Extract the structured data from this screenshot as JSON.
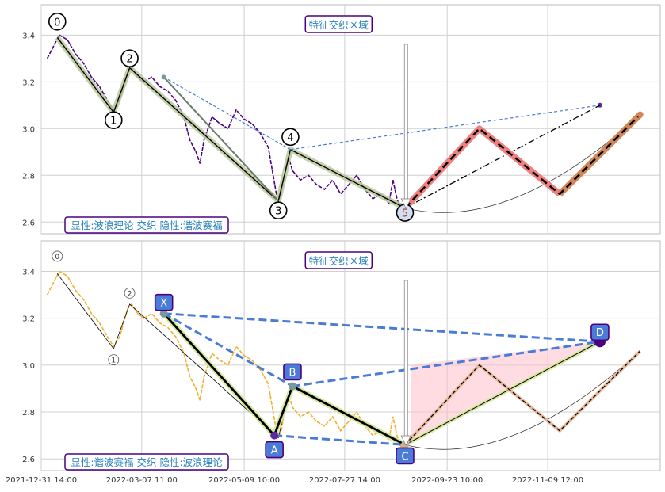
{
  "chart_data": [
    {
      "type": "line",
      "panel": "top",
      "annotation_box": "显性:波浪理论 交织 隐性:谐波赛福",
      "feature_label": "特征交织区域",
      "ylim": [
        2.55,
        3.53
      ],
      "yticks": [
        2.6,
        2.8,
        3.0,
        3.2,
        3.4
      ],
      "yticklabels": [
        "2.6",
        "2.8",
        "3.0",
        "3.2",
        "3.4"
      ],
      "grid": true,
      "price": [
        [
          0,
          3.3
        ],
        [
          3,
          3.35
        ],
        [
          6,
          3.4
        ],
        [
          10,
          3.38
        ],
        [
          14,
          3.32
        ],
        [
          18,
          3.28
        ],
        [
          22,
          3.22
        ],
        [
          26,
          3.18
        ],
        [
          30,
          3.12
        ],
        [
          33,
          3.08
        ],
        [
          36,
          3.12
        ],
        [
          38,
          3.18
        ],
        [
          40,
          3.24
        ],
        [
          42,
          3.26
        ],
        [
          45,
          3.22
        ],
        [
          48,
          3.2
        ],
        [
          52,
          3.22
        ],
        [
          56,
          3.18
        ],
        [
          60,
          3.16
        ],
        [
          64,
          3.12
        ],
        [
          68,
          3.05
        ],
        [
          71,
          2.95
        ],
        [
          74,
          2.9
        ],
        [
          76,
          2.85
        ],
        [
          78,
          2.95
        ],
        [
          82,
          3.05
        ],
        [
          86,
          3.02
        ],
        [
          90,
          3.0
        ],
        [
          94,
          3.08
        ],
        [
          98,
          3.04
        ],
        [
          102,
          3.02
        ],
        [
          106,
          2.98
        ],
        [
          110,
          2.92
        ],
        [
          112,
          2.82
        ],
        [
          114,
          2.72
        ],
        [
          116,
          2.7
        ],
        [
          118,
          2.8
        ],
        [
          120,
          2.88
        ],
        [
          122,
          2.82
        ],
        [
          126,
          2.78
        ],
        [
          130,
          2.8
        ],
        [
          134,
          2.76
        ],
        [
          138,
          2.74
        ],
        [
          142,
          2.78
        ],
        [
          146,
          2.72
        ],
        [
          150,
          2.76
        ],
        [
          154,
          2.8
        ],
        [
          158,
          2.74
        ],
        [
          162,
          2.7
        ],
        [
          166,
          2.72
        ],
        [
          170,
          2.68
        ],
        [
          172,
          2.78
        ],
        [
          174,
          2.7
        ],
        [
          176,
          2.65
        ],
        [
          178,
          2.62
        ]
      ],
      "waves": [
        {
          "label": "0",
          "x": 5,
          "y": 3.39
        },
        {
          "label": "1",
          "x": 33,
          "y": 3.07
        },
        {
          "label": "2",
          "x": 41,
          "y": 3.26
        },
        {
          "label": "3",
          "x": 115,
          "y": 2.69
        },
        {
          "label": "4",
          "x": 121,
          "y": 2.91
        },
        {
          "label": "5",
          "x": 178,
          "y": 2.66
        }
      ],
      "projection": [
        [
          178,
          2.66
        ],
        [
          215,
          3.0
        ],
        [
          255,
          2.72
        ],
        [
          295,
          3.06
        ]
      ]
    },
    {
      "type": "line",
      "panel": "bottom",
      "annotation_box": "显性:谐波赛福 交织 隐性:波浪理论",
      "feature_label": "特征交织区域",
      "ylim": [
        2.55,
        3.53
      ],
      "yticks": [
        2.6,
        2.8,
        3.0,
        3.2,
        3.4
      ],
      "yticklabels": [
        "2.6",
        "2.8",
        "3.0",
        "3.2",
        "3.4"
      ],
      "grid": true,
      "harmonic": [
        {
          "label": "X",
          "x": 58,
          "y": 3.22
        },
        {
          "label": "A",
          "x": 113,
          "y": 2.7
        },
        {
          "label": "B",
          "x": 122,
          "y": 2.91
        },
        {
          "label": "C",
          "x": 178,
          "y": 2.66
        },
        {
          "label": "D",
          "x": 275,
          "y": 3.1
        }
      ],
      "small_waves": [
        {
          "label": "0",
          "x": 5,
          "y": 3.39
        },
        {
          "label": "1",
          "x": 33,
          "y": 3.07
        },
        {
          "label": "2",
          "x": 41,
          "y": 3.26
        }
      ]
    }
  ],
  "x_axis": {
    "range": [
      -3,
      305
    ],
    "ticks": [
      -3,
      47,
      98,
      148,
      199,
      249
    ],
    "labels": [
      "2021-12-31 14:00",
      "2022-03-07 11:00",
      "2022-05-09 10:00",
      "2022-07-27 14:00",
      "2022-09-23 10:00",
      "2022-11-09 12:00"
    ]
  },
  "colors": {
    "top_price": "#4b0082",
    "bottom_price": "#f0b030",
    "wave_band": "#b8c89a",
    "projection_band": "#f08080",
    "projection_band2": "#d2875a",
    "dashed_blue": "#4a7bd6",
    "label_box_fill": "#4a7bd6",
    "label_box_border": "#4b0082",
    "annotation_text": "#2a80b9",
    "annotation_border": "#4b0082",
    "pink_fill": "#ffc0cb"
  }
}
